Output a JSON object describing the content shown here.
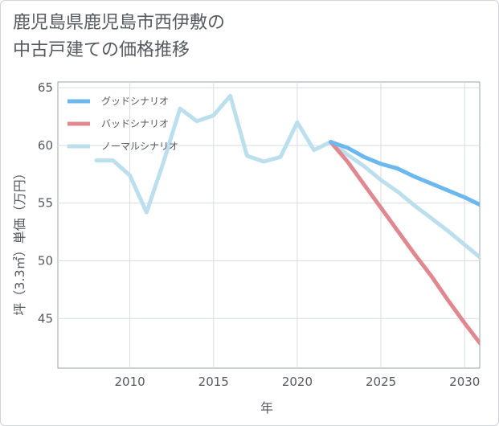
{
  "title_lines": [
    "鹿児島県鹿児島市西伊敷の",
    "中古戸建ての価格推移"
  ],
  "chart_data": {
    "type": "line",
    "title": "鹿児島県鹿児島市西伊敷の中古戸建ての価格推移",
    "xlabel": "年",
    "ylabel": "坪（3.3㎡）単価（万円）",
    "xlim": [
      2005.7,
      2030.9
    ],
    "ylim": [
      40.7,
      65.5
    ],
    "x_ticks": [
      2010,
      2015,
      2020,
      2025,
      2030
    ],
    "y_ticks": [
      45,
      50,
      55,
      60,
      65
    ],
    "grid": true,
    "legend_position": "top-left",
    "series": [
      {
        "name": "グッドシナリオ",
        "color": "#6bb8ef",
        "points": [
          [
            2022,
            60.3
          ],
          [
            2023,
            59.8
          ],
          [
            2024,
            59.0
          ],
          [
            2025,
            58.4
          ],
          [
            2026,
            58.0
          ],
          [
            2027,
            57.3
          ],
          [
            2028,
            56.7
          ],
          [
            2029,
            56.1
          ],
          [
            2030,
            55.5
          ],
          [
            2031,
            54.8
          ]
        ]
      },
      {
        "name": "バッドシナリオ",
        "color": "#e08890",
        "points": [
          [
            2022,
            60.3
          ],
          [
            2023,
            58.6
          ],
          [
            2024,
            56.6
          ],
          [
            2025,
            54.6
          ],
          [
            2026,
            52.6
          ],
          [
            2027,
            50.6
          ],
          [
            2028,
            48.7
          ],
          [
            2029,
            46.6
          ],
          [
            2030,
            44.6
          ],
          [
            2031,
            42.7
          ]
        ]
      },
      {
        "name": "ノーマルシナリオ",
        "color": "#bcdfee",
        "points": [
          [
            2008,
            58.7
          ],
          [
            2009,
            58.7
          ],
          [
            2010,
            57.4
          ],
          [
            2011,
            54.2
          ],
          [
            2012,
            58.5
          ],
          [
            2013,
            63.2
          ],
          [
            2014,
            62.1
          ],
          [
            2015,
            62.6
          ],
          [
            2016,
            64.3
          ],
          [
            2017,
            59.1
          ],
          [
            2018,
            58.6
          ],
          [
            2019,
            59.0
          ],
          [
            2020,
            62.0
          ],
          [
            2021,
            59.6
          ],
          [
            2022,
            60.3
          ],
          [
            2023,
            59.2
          ],
          [
            2024,
            58.2
          ],
          [
            2025,
            57.0
          ],
          [
            2026,
            56.0
          ],
          [
            2027,
            54.8
          ],
          [
            2028,
            53.7
          ],
          [
            2029,
            52.6
          ],
          [
            2030,
            51.4
          ],
          [
            2031,
            50.2
          ]
        ]
      }
    ]
  }
}
